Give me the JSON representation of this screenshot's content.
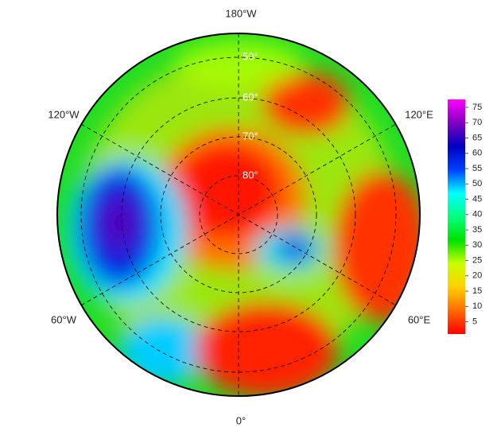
{
  "map": {
    "longitude_labels": [
      "180°W",
      "120°W",
      "120°E",
      "60°W",
      "60°E",
      "0°"
    ],
    "latitude_labels": [
      "50°",
      "60°",
      "70°",
      "80°"
    ],
    "colorbar": {
      "lim": [
        1,
        77.6
      ],
      "ticks": [
        5,
        10,
        15,
        20,
        25,
        30,
        35,
        40,
        45,
        50,
        55,
        60,
        65,
        70,
        75
      ],
      "colors": [
        "#ff0000",
        "#ff6a00",
        "#ffd000",
        "#c8ff00",
        "#00e000",
        "#00ff80",
        "#00ffff",
        "#0040ff",
        "#0000c0",
        "#8000c0",
        "#ff00ff"
      ]
    }
  }
}
